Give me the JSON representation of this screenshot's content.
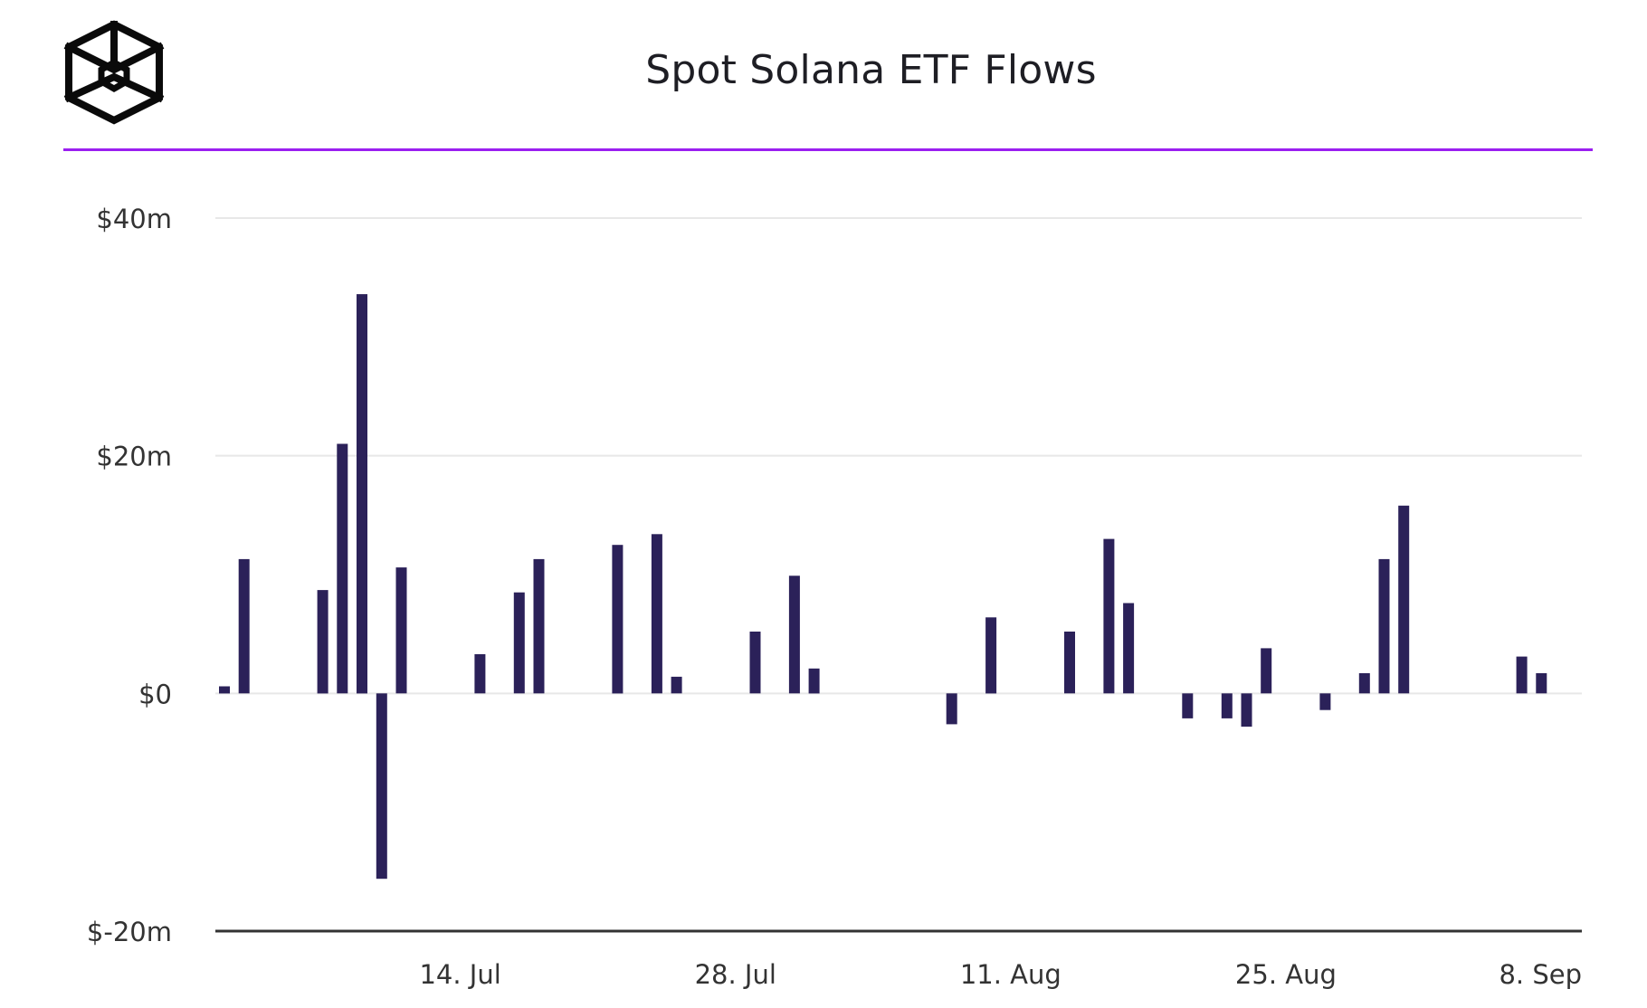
{
  "header": {
    "title": "Spot Solana ETF Flows"
  },
  "colors": {
    "bar": "#2b2159",
    "accent": "#9b1ff0",
    "grid": "#e8e8e8",
    "axis": "#333333",
    "text": "#333333"
  },
  "icons": {
    "logo": "hexagonal-cube-logo-icon"
  },
  "chart_data": {
    "type": "bar",
    "title": "Spot Solana ETF Flows",
    "xlabel": "",
    "ylabel": "",
    "ylim": [
      -20,
      40
    ],
    "y_unit": "$m",
    "grid": true,
    "legend": "none",
    "y_ticks": [
      {
        "value": 40,
        "label": "$40m"
      },
      {
        "value": 20,
        "label": "$20m"
      },
      {
        "value": 0,
        "label": "$0"
      },
      {
        "value": -20,
        "label": "$-20m"
      }
    ],
    "x_range": [
      "2025-07-02",
      "2025-09-08"
    ],
    "x_ticks": [
      {
        "date": "2025-07-14",
        "label": "14. Jul"
      },
      {
        "date": "2025-07-28",
        "label": "28. Jul"
      },
      {
        "date": "2025-08-11",
        "label": "11. Aug"
      },
      {
        "date": "2025-08-25",
        "label": "25. Aug"
      },
      {
        "date": "2025-09-08",
        "label": "8. Sep"
      }
    ],
    "series": [
      {
        "values": [
          {
            "date": "2025-07-02",
            "value": 0.6
          },
          {
            "date": "2025-07-03",
            "value": 11.3
          },
          {
            "date": "2025-07-07",
            "value": 8.7
          },
          {
            "date": "2025-07-08",
            "value": 21.0
          },
          {
            "date": "2025-07-09",
            "value": 33.6
          },
          {
            "date": "2025-07-10",
            "value": -15.6
          },
          {
            "date": "2025-07-11",
            "value": 10.6
          },
          {
            "date": "2025-07-15",
            "value": 3.3
          },
          {
            "date": "2025-07-17",
            "value": 8.5
          },
          {
            "date": "2025-07-18",
            "value": 11.3
          },
          {
            "date": "2025-07-22",
            "value": 12.5
          },
          {
            "date": "2025-07-24",
            "value": 13.4
          },
          {
            "date": "2025-07-25",
            "value": 1.4
          },
          {
            "date": "2025-07-29",
            "value": 5.2
          },
          {
            "date": "2025-07-31",
            "value": 9.9
          },
          {
            "date": "2025-08-01",
            "value": 2.1
          },
          {
            "date": "2025-08-08",
            "value": -2.6
          },
          {
            "date": "2025-08-10",
            "value": 6.4
          },
          {
            "date": "2025-08-14",
            "value": 5.2
          },
          {
            "date": "2025-08-16",
            "value": 13.0
          },
          {
            "date": "2025-08-17",
            "value": 7.6
          },
          {
            "date": "2025-08-20",
            "value": -2.1
          },
          {
            "date": "2025-08-22",
            "value": -2.1
          },
          {
            "date": "2025-08-23",
            "value": -2.8
          },
          {
            "date": "2025-08-24",
            "value": 3.8
          },
          {
            "date": "2025-08-27",
            "value": -1.4
          },
          {
            "date": "2025-08-29",
            "value": 1.7
          },
          {
            "date": "2025-08-30",
            "value": 11.3
          },
          {
            "date": "2025-08-31",
            "value": 15.8
          },
          {
            "date": "2025-09-06",
            "value": 3.1
          },
          {
            "date": "2025-09-07",
            "value": 1.7
          }
        ]
      }
    ]
  }
}
